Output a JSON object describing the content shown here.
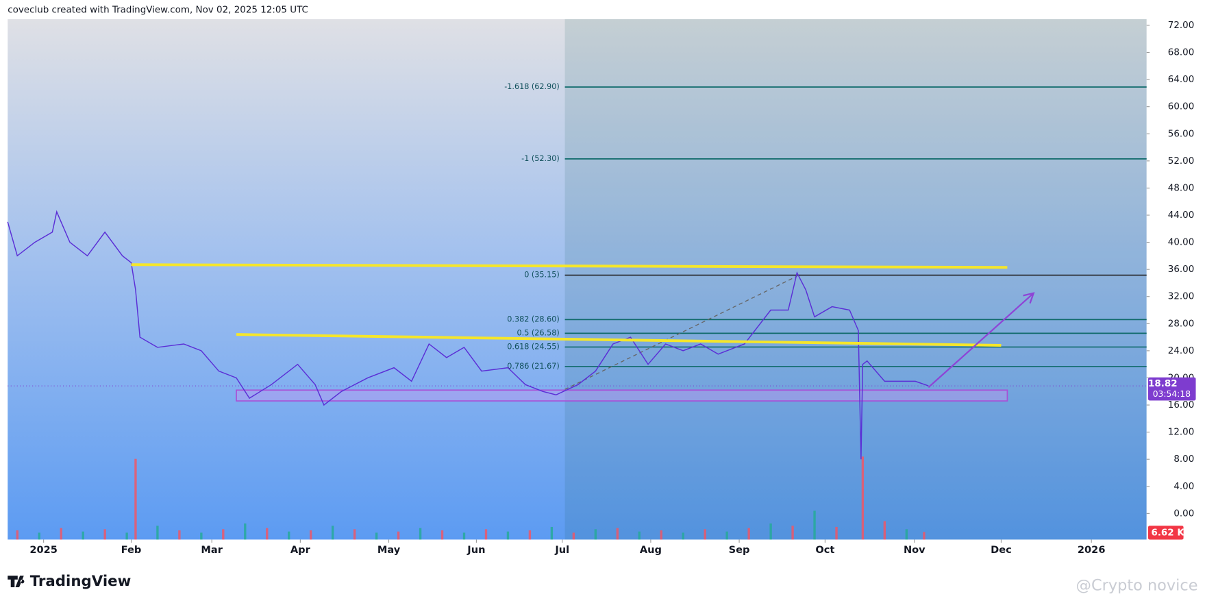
{
  "chart_data": {
    "type": "line",
    "header": "coveclub created with TradingView.com, Nov 02, 2025 12:05 UTC",
    "brand": "TradingView",
    "watermark": "@Crypto novice",
    "xlim": [
      -0.41,
      12.59
    ],
    "xticks": [
      {
        "value": 0,
        "label": "2025"
      },
      {
        "value": 1,
        "label": "Feb"
      },
      {
        "value": 1.92,
        "label": "Mar"
      },
      {
        "value": 2.93,
        "label": "Apr"
      },
      {
        "value": 3.94,
        "label": "May"
      },
      {
        "value": 4.94,
        "label": "Jun"
      },
      {
        "value": 5.92,
        "label": "Jul"
      },
      {
        "value": 6.93,
        "label": "Aug"
      },
      {
        "value": 7.94,
        "label": "Sep"
      },
      {
        "value": 8.92,
        "label": "Oct"
      },
      {
        "value": 9.94,
        "label": "Nov"
      },
      {
        "value": 10.93,
        "label": "Dec"
      },
      {
        "value": 11.96,
        "label": "2026"
      }
    ],
    "ylim": [
      -3.85,
      72.9
    ],
    "yticks": [
      {
        "value": 0,
        "label": "0.00"
      },
      {
        "value": 4,
        "label": "4.00"
      },
      {
        "value": 8,
        "label": "8.00"
      },
      {
        "value": 12,
        "label": "12.00"
      },
      {
        "value": 16,
        "label": "16.00"
      },
      {
        "value": 20,
        "label": "20.00"
      },
      {
        "value": 24,
        "label": "24.00"
      },
      {
        "value": 28,
        "label": "28.00"
      },
      {
        "value": 32,
        "label": "32.00"
      },
      {
        "value": 36,
        "label": "36.00"
      },
      {
        "value": 40,
        "label": "40.00"
      },
      {
        "value": 44,
        "label": "44.00"
      },
      {
        "value": 48,
        "label": "48.00"
      },
      {
        "value": 52,
        "label": "52.00"
      },
      {
        "value": 56,
        "label": "56.00"
      },
      {
        "value": 60,
        "label": "60.00"
      },
      {
        "value": 64,
        "label": "64.00"
      },
      {
        "value": 68,
        "label": "68.00"
      },
      {
        "value": 72,
        "label": "72.00"
      }
    ],
    "series": [
      {
        "color": "#5b2fd6",
        "x": [
          -0.41,
          -0.3,
          -0.1,
          0.1,
          0.15,
          0.3,
          0.5,
          0.7,
          0.9,
          1.0,
          1.05,
          1.1,
          1.3,
          1.6,
          1.8,
          2.0,
          2.2,
          2.35,
          2.6,
          2.9,
          3.1,
          3.2,
          3.4,
          3.7,
          4.0,
          4.2,
          4.4,
          4.6,
          4.8,
          5.0,
          5.3,
          5.5,
          5.7,
          5.85,
          6.1,
          6.3,
          6.5,
          6.7,
          6.9,
          7.1,
          7.3,
          7.5,
          7.7,
          8.0,
          8.3,
          8.5,
          8.6,
          8.7,
          8.8,
          9.0,
          9.2,
          9.3,
          9.33,
          9.35,
          9.4,
          9.6,
          9.8,
          9.95,
          10.1
        ],
        "values": [
          43,
          38,
          40,
          41.5,
          44.5,
          40,
          38,
          41.5,
          38,
          37,
          33,
          26,
          24.5,
          25,
          24,
          21,
          20,
          17,
          19,
          22,
          19,
          16,
          18,
          20,
          21.5,
          19.5,
          25,
          23,
          24.5,
          21,
          21.5,
          19,
          18,
          17.5,
          19,
          21,
          25,
          26,
          22,
          25,
          24,
          25,
          23.5,
          25,
          30,
          30,
          35.5,
          33,
          29,
          30.5,
          30,
          27,
          8,
          22,
          22.5,
          19.5,
          19.5,
          19.5,
          18.82
        ]
      }
    ],
    "last_price": {
      "value": 18.82,
      "label": "18.82",
      "countdown": "03:54:18",
      "color": "#7e3ccf"
    },
    "fib_start": 5.95,
    "fib_levels": [
      {
        "label": "-1.618 (62.90)",
        "value": 62.9
      },
      {
        "label": "-1 (52.30)",
        "value": 52.3
      },
      {
        "label": "0 (35.15)",
        "value": 35.15
      },
      {
        "label": "0.382 (28.60)",
        "value": 28.6
      },
      {
        "label": "0.5 (26.58)",
        "value": 26.58
      },
      {
        "label": "0.618 (24.55)",
        "value": 24.55
      },
      {
        "label": "0.786 (21.67)",
        "value": 21.67
      }
    ],
    "trendlines": [
      {
        "color": "#f5e62a",
        "x": [
          1.0,
          11.0
        ],
        "y": [
          36.7,
          36.3
        ]
      },
      {
        "color": "#f5e62a",
        "x": [
          2.2,
          10.93
        ],
        "y": [
          26.4,
          24.8
        ]
      }
    ],
    "dashed_line": {
      "color": "#666666",
      "x": [
        5.95,
        8.6
      ],
      "y": [
        18.3,
        35.0
      ]
    },
    "arrow": {
      "color": "#8e44d6",
      "x": [
        10.1,
        11.3
      ],
      "y": [
        18.6,
        32.5
      ]
    },
    "zone": {
      "color": "#a84fd6",
      "x": [
        2.2,
        11.0
      ],
      "y": [
        16.6,
        18.2
      ]
    },
    "volume": {
      "label": "6.62 K",
      "color": "#f23645",
      "x": [
        -0.3,
        -0.05,
        0.2,
        0.45,
        0.7,
        0.95,
        1.05,
        1.3,
        1.55,
        1.8,
        2.05,
        2.3,
        2.55,
        2.8,
        3.05,
        3.3,
        3.55,
        3.8,
        4.05,
        4.3,
        4.55,
        4.8,
        5.05,
        5.3,
        5.55,
        5.8,
        6.05,
        6.3,
        6.55,
        6.8,
        7.05,
        7.3,
        7.55,
        7.8,
        8.05,
        8.3,
        8.55,
        8.8,
        9.05,
        9.35,
        9.6,
        9.85,
        10.05
      ],
      "values": [
        8,
        6,
        10,
        7,
        9,
        6,
        70,
        12,
        8,
        6,
        9,
        14,
        10,
        7,
        8,
        12,
        9,
        6,
        7,
        10,
        8,
        6,
        9,
        7,
        8,
        11,
        6,
        9,
        10,
        7,
        8,
        6,
        9,
        7,
        10,
        14,
        12,
        25,
        11,
        72,
        16,
        9,
        6.62
      ],
      "colors": [
        "#f7525f",
        "#22ab94",
        "#f7525f",
        "#22ab94",
        "#f7525f",
        "#22ab94",
        "#f7525f",
        "#22ab94",
        "#f7525f",
        "#22ab94",
        "#f7525f",
        "#22ab94",
        "#f7525f",
        "#22ab94",
        "#f7525f",
        "#22ab94",
        "#f7525f",
        "#22ab94",
        "#f7525f",
        "#22ab94",
        "#f7525f",
        "#22ab94",
        "#f7525f",
        "#22ab94",
        "#f7525f",
        "#22ab94",
        "#f7525f",
        "#22ab94",
        "#f7525f",
        "#22ab94",
        "#f7525f",
        "#22ab94",
        "#f7525f",
        "#22ab94",
        "#f7525f",
        "#22ab94",
        "#f7525f",
        "#22ab94",
        "#f7525f",
        "#f7525f",
        "#f7525f",
        "#22ab94",
        "#f7525f"
      ]
    }
  }
}
